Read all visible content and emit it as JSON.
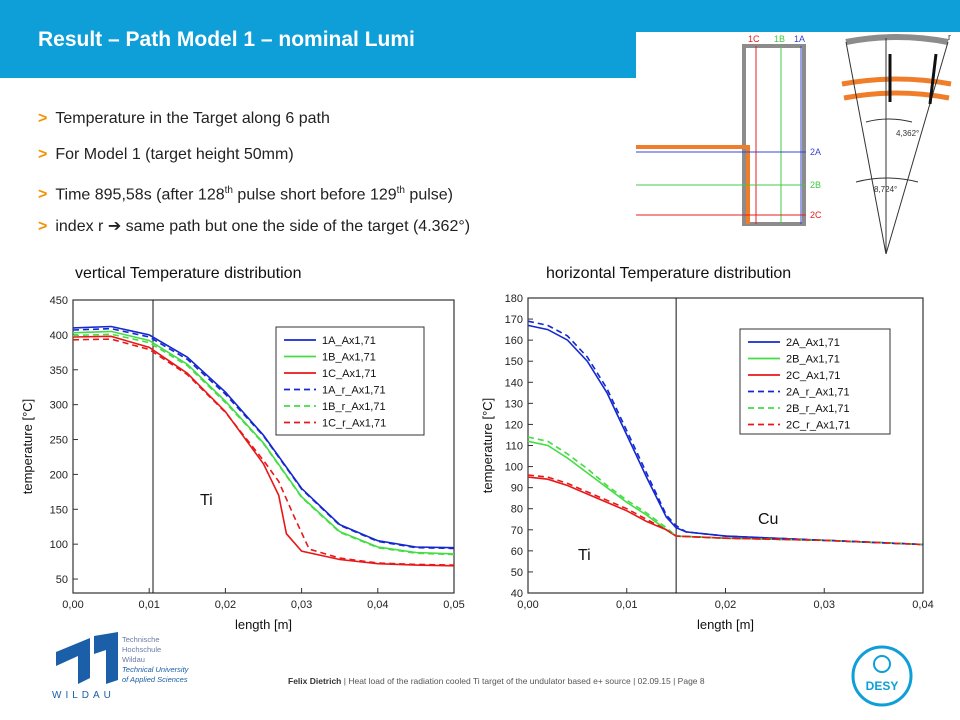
{
  "header": {
    "title": "Result – Path Model 1 – nominal Lumi"
  },
  "bullets": [
    {
      "pre": "Temperature in the Target along 6 path",
      "sup": "",
      "post": ""
    },
    {
      "pre": "For Model 1 (target height 50mm)",
      "sup": "",
      "post": ""
    },
    {
      "pre": "Time 895,58s (after 128",
      "sup": "th",
      "mid": " pulse short before 129",
      "sup2": "th",
      "post": " pulse)"
    },
    {
      "pre": "index r  ➔  same path but one the side of the target (4.362°)",
      "sup": "",
      "post": ""
    }
  ],
  "diagram": {
    "labels": {
      "c1": "1C",
      "b1": "1B",
      "a1": "1A",
      "a2": "2A",
      "b2": "2B",
      "c2": "2C",
      "r": "r",
      "angle1": "4,362°",
      "angle2": "8,724°"
    },
    "colors": {
      "gray": "#8c8c8c",
      "orange": "#f07d2a",
      "red": "#e02020",
      "green": "#44c844",
      "blue": "#3545d0"
    }
  },
  "chart_data": [
    {
      "type": "line",
      "title": "vertical Temperature distribution",
      "xlabel": "length [m]",
      "ylabel": "temperature [°C]",
      "xlim": [
        0,
        0.05
      ],
      "ylim": [
        30,
        450
      ],
      "xticks": [
        "0,00",
        "0,01",
        "0,02",
        "0,03",
        "0,04",
        "0,05"
      ],
      "yticks": [
        "50",
        "100",
        "150",
        "200",
        "250",
        "300",
        "350",
        "400",
        "450"
      ],
      "legend_position": "top-right",
      "annotations": [
        {
          "text": "Ti"
        }
      ],
      "divider_x": 0.0105,
      "series": [
        {
          "name": "1A_Ax1,71",
          "color": "#1428d0",
          "dash": false,
          "x": [
            0,
            0.005,
            0.01,
            0.015,
            0.02,
            0.025,
            0.03,
            0.035,
            0.04,
            0.045,
            0.05
          ],
          "y": [
            410,
            412,
            400,
            368,
            318,
            256,
            180,
            128,
            105,
            96,
            95
          ]
        },
        {
          "name": "1B_Ax1,71",
          "color": "#44dd44",
          "dash": false,
          "x": [
            0,
            0.005,
            0.01,
            0.015,
            0.02,
            0.025,
            0.03,
            0.035,
            0.04,
            0.045,
            0.05
          ],
          "y": [
            403,
            405,
            392,
            358,
            305,
            245,
            168,
            118,
            96,
            88,
            86
          ]
        },
        {
          "name": "1C_Ax1,71",
          "color": "#e81818",
          "dash": false,
          "x": [
            0,
            0.005,
            0.01,
            0.015,
            0.02,
            0.025,
            0.027,
            0.028,
            0.03,
            0.035,
            0.04,
            0.045,
            0.05
          ],
          "y": [
            397,
            398,
            382,
            345,
            290,
            215,
            170,
            115,
            90,
            78,
            72,
            70,
            69
          ]
        },
        {
          "name": "1A_r_Ax1,71",
          "color": "#1428d0",
          "dash": true,
          "x": [
            0,
            0.005,
            0.01,
            0.015,
            0.02,
            0.025,
            0.03,
            0.035,
            0.04,
            0.045,
            0.05
          ],
          "y": [
            407,
            409,
            397,
            365,
            315,
            255,
            179,
            127,
            104,
            95,
            94
          ]
        },
        {
          "name": "1B_r_Ax1,71",
          "color": "#44dd44",
          "dash": true,
          "x": [
            0,
            0.005,
            0.01,
            0.015,
            0.02,
            0.025,
            0.03,
            0.035,
            0.04,
            0.045,
            0.05
          ],
          "y": [
            399,
            401,
            389,
            356,
            303,
            244,
            167,
            117,
            95,
            87,
            85
          ]
        },
        {
          "name": "1C_r_Ax1,71",
          "color": "#e81818",
          "dash": true,
          "x": [
            0,
            0.005,
            0.01,
            0.015,
            0.02,
            0.025,
            0.027,
            0.029,
            0.031,
            0.035,
            0.04,
            0.045,
            0.05
          ],
          "y": [
            393,
            394,
            379,
            343,
            289,
            220,
            190,
            140,
            93,
            80,
            73,
            71,
            70
          ]
        }
      ]
    },
    {
      "type": "line",
      "title": "horizontal Temperature distribution",
      "xlabel": "length [m]",
      "ylabel": "temperature [°C]",
      "xlim": [
        0,
        0.04
      ],
      "ylim": [
        40,
        180
      ],
      "xticks": [
        "0,00",
        "0,01",
        "0,02",
        "0,03",
        "0,04"
      ],
      "yticks": [
        "40",
        "50",
        "60",
        "70",
        "80",
        "90",
        "100",
        "110",
        "120",
        "130",
        "140",
        "150",
        "160",
        "170",
        "180"
      ],
      "legend_position": "top-right",
      "annotations": [
        {
          "text": "Ti"
        },
        {
          "text": "Cu"
        }
      ],
      "divider_x": 0.015,
      "series": [
        {
          "name": "2A_Ax1,71",
          "color": "#1428d0",
          "dash": false,
          "x": [
            0,
            0.002,
            0.004,
            0.006,
            0.008,
            0.01,
            0.012,
            0.014,
            0.015,
            0.016,
            0.02,
            0.03,
            0.04
          ],
          "y": [
            167,
            165,
            160,
            150,
            135,
            115,
            95,
            76,
            71,
            69,
            67,
            65,
            63
          ]
        },
        {
          "name": "2B_Ax1,71",
          "color": "#44dd44",
          "dash": false,
          "x": [
            0,
            0.002,
            0.004,
            0.006,
            0.008,
            0.01,
            0.012,
            0.014,
            0.015,
            0.02,
            0.03,
            0.04
          ],
          "y": [
            112,
            110,
            104,
            97,
            90,
            83,
            77,
            70,
            67,
            66,
            65,
            63
          ]
        },
        {
          "name": "2C_Ax1,71",
          "color": "#e81818",
          "dash": false,
          "x": [
            0,
            0.002,
            0.004,
            0.006,
            0.008,
            0.01,
            0.012,
            0.014,
            0.015,
            0.02,
            0.03,
            0.04
          ],
          "y": [
            95,
            94,
            91,
            87,
            83,
            79,
            74,
            70,
            67,
            66,
            65,
            63
          ]
        },
        {
          "name": "2A_r_Ax1,71",
          "color": "#1428d0",
          "dash": true,
          "x": [
            0,
            0.002,
            0.004,
            0.006,
            0.008,
            0.01,
            0.012,
            0.014,
            0.015,
            0.016,
            0.02,
            0.03,
            0.04
          ],
          "y": [
            169,
            167,
            162,
            152,
            137,
            117,
            97,
            77,
            72,
            69,
            67,
            65,
            63
          ]
        },
        {
          "name": "2B_r_Ax1,71",
          "color": "#44dd44",
          "dash": true,
          "x": [
            0,
            0.002,
            0.004,
            0.006,
            0.008,
            0.01,
            0.012,
            0.014,
            0.015,
            0.02,
            0.03,
            0.04
          ],
          "y": [
            114,
            112,
            106,
            99,
            91,
            84,
            78,
            71,
            67,
            66,
            65,
            63
          ]
        },
        {
          "name": "2C_r_Ax1,71",
          "color": "#e81818",
          "dash": true,
          "x": [
            0,
            0.002,
            0.004,
            0.006,
            0.008,
            0.01,
            0.012,
            0.014,
            0.015,
            0.02,
            0.03,
            0.04
          ],
          "y": [
            96,
            95,
            92,
            88,
            84,
            80,
            75,
            70,
            67,
            66,
            65,
            63
          ]
        }
      ]
    }
  ],
  "logo": {
    "line1": "Technische",
    "line2": "Hochschule",
    "line3": "Wildau",
    "line4": "Technical University",
    "line5": "of Applied Sciences",
    "word": "WILDAU"
  },
  "footer": {
    "author": "Felix Dietrich",
    "text": "| Heat load of the radiation cooled Ti target of the undulator based e+ source",
    "date": "|  02.09.15",
    "page": "|  Page 8"
  },
  "desy": {
    "label": "DESY",
    "color": "#0e9fd8"
  }
}
